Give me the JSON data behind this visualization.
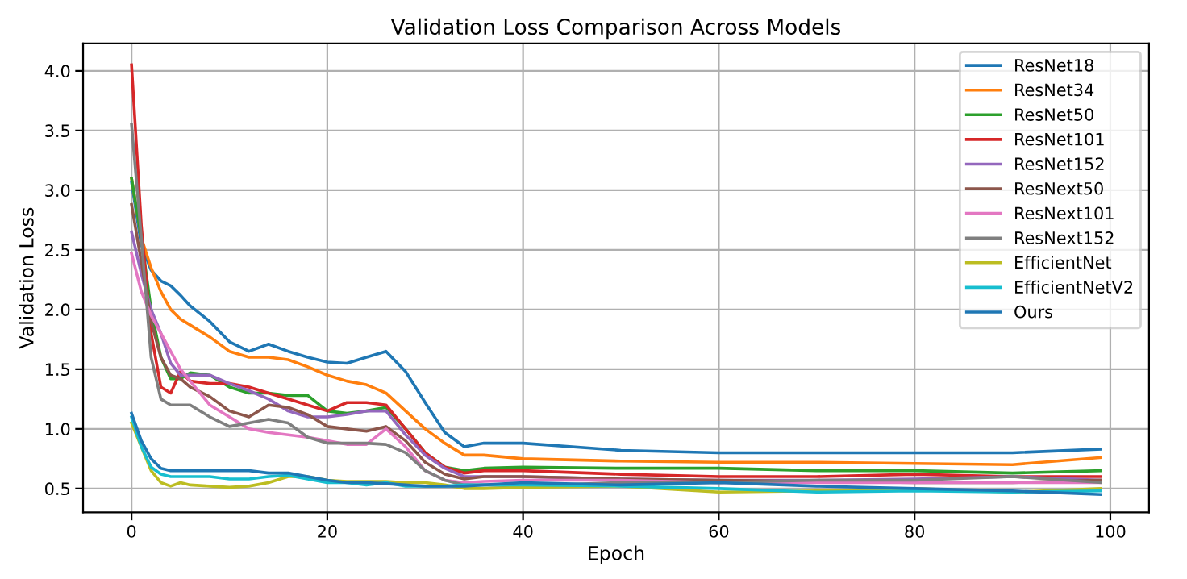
{
  "chart_data": {
    "type": "line",
    "title": "Validation Loss Comparison Across Models",
    "xlabel": "Epoch",
    "ylabel": "Validation Loss",
    "x": [
      0,
      1,
      2,
      3,
      4,
      5,
      6,
      8,
      10,
      12,
      14,
      16,
      18,
      20,
      22,
      24,
      26,
      28,
      30,
      32,
      34,
      36,
      40,
      50,
      60,
      70,
      80,
      90,
      99
    ],
    "series": [
      {
        "name": "ResNet18",
        "color": "#1f77b4",
        "values": [
          3.07,
          2.54,
          2.33,
          2.24,
          2.2,
          2.12,
          2.03,
          1.9,
          1.73,
          1.65,
          1.71,
          1.65,
          1.6,
          1.56,
          1.55,
          1.6,
          1.65,
          1.48,
          1.22,
          0.97,
          0.85,
          0.88,
          0.88,
          0.82,
          0.8,
          0.8,
          0.8,
          0.8,
          0.83
        ]
      },
      {
        "name": "ResNet34",
        "color": "#ff7f0e",
        "values": [
          3.1,
          2.6,
          2.35,
          2.15,
          2.0,
          1.92,
          1.87,
          1.77,
          1.65,
          1.6,
          1.6,
          1.58,
          1.52,
          1.45,
          1.4,
          1.37,
          1.3,
          1.15,
          1.0,
          0.88,
          0.78,
          0.78,
          0.75,
          0.73,
          0.72,
          0.72,
          0.71,
          0.7,
          0.76
        ]
      },
      {
        "name": "ResNet50",
        "color": "#2ca02c",
        "values": [
          3.1,
          2.6,
          2.0,
          1.6,
          1.42,
          1.42,
          1.47,
          1.45,
          1.35,
          1.3,
          1.3,
          1.28,
          1.28,
          1.15,
          1.13,
          1.15,
          1.18,
          1.0,
          0.8,
          0.68,
          0.65,
          0.67,
          0.68,
          0.67,
          0.67,
          0.65,
          0.65,
          0.63,
          0.65
        ]
      },
      {
        "name": "ResNet101",
        "color": "#d62728",
        "values": [
          4.05,
          2.7,
          1.8,
          1.35,
          1.3,
          1.48,
          1.4,
          1.38,
          1.38,
          1.35,
          1.3,
          1.25,
          1.2,
          1.15,
          1.22,
          1.22,
          1.2,
          1.0,
          0.8,
          0.68,
          0.63,
          0.65,
          0.65,
          0.62,
          0.6,
          0.6,
          0.62,
          0.6,
          0.6
        ]
      },
      {
        "name": "ResNet152",
        "color": "#9467bd",
        "values": [
          2.65,
          2.3,
          2.0,
          1.8,
          1.55,
          1.45,
          1.45,
          1.45,
          1.38,
          1.32,
          1.25,
          1.15,
          1.1,
          1.1,
          1.12,
          1.15,
          1.15,
          0.95,
          0.78,
          0.67,
          0.6,
          0.6,
          0.6,
          0.58,
          0.57,
          0.57,
          0.58,
          0.6,
          0.57
        ]
      },
      {
        "name": "ResNext50",
        "color": "#8c564b",
        "values": [
          2.88,
          2.4,
          1.9,
          1.6,
          1.45,
          1.42,
          1.35,
          1.27,
          1.15,
          1.1,
          1.2,
          1.18,
          1.12,
          1.02,
          1.0,
          0.98,
          1.02,
          0.9,
          0.72,
          0.62,
          0.58,
          0.6,
          0.6,
          0.58,
          0.57,
          0.56,
          0.55,
          0.55,
          0.57
        ]
      },
      {
        "name": "ResNext101",
        "color": "#e377c2",
        "values": [
          2.47,
          2.15,
          1.95,
          1.8,
          1.65,
          1.5,
          1.4,
          1.2,
          1.1,
          1.0,
          0.97,
          0.95,
          0.93,
          0.9,
          0.87,
          0.87,
          1.0,
          0.85,
          0.65,
          0.57,
          0.55,
          0.56,
          0.57,
          0.57,
          0.55,
          0.55,
          0.55,
          0.55,
          0.55
        ]
      },
      {
        "name": "ResNext152",
        "color": "#7f7f7f",
        "values": [
          3.55,
          2.6,
          1.6,
          1.25,
          1.2,
          1.2,
          1.2,
          1.1,
          1.02,
          1.05,
          1.08,
          1.05,
          0.93,
          0.88,
          0.88,
          0.88,
          0.87,
          0.8,
          0.65,
          0.57,
          0.53,
          0.53,
          0.52,
          0.55,
          0.55,
          0.57,
          0.57,
          0.6,
          0.55
        ]
      },
      {
        "name": "EfficientNet",
        "color": "#bcbd22",
        "values": [
          1.05,
          0.85,
          0.65,
          0.55,
          0.52,
          0.55,
          0.53,
          0.52,
          0.51,
          0.52,
          0.55,
          0.6,
          0.6,
          0.57,
          0.56,
          0.56,
          0.56,
          0.55,
          0.55,
          0.53,
          0.5,
          0.5,
          0.51,
          0.52,
          0.47,
          0.48,
          0.5,
          0.47,
          0.5
        ]
      },
      {
        "name": "EfficientNetV2",
        "color": "#17becf",
        "values": [
          1.1,
          0.85,
          0.68,
          0.62,
          0.6,
          0.6,
          0.6,
          0.6,
          0.58,
          0.58,
          0.6,
          0.61,
          0.58,
          0.55,
          0.55,
          0.53,
          0.55,
          0.52,
          0.52,
          0.52,
          0.53,
          0.53,
          0.53,
          0.52,
          0.5,
          0.47,
          0.48,
          0.47,
          0.48
        ]
      },
      {
        "name": "Ours",
        "color": "#1f77b4",
        "values": [
          1.13,
          0.9,
          0.75,
          0.67,
          0.65,
          0.65,
          0.65,
          0.65,
          0.65,
          0.65,
          0.63,
          0.63,
          0.6,
          0.57,
          0.55,
          0.55,
          0.54,
          0.53,
          0.52,
          0.52,
          0.52,
          0.53,
          0.55,
          0.53,
          0.55,
          0.52,
          0.5,
          0.48,
          0.45
        ]
      }
    ],
    "xlim": [
      -4.95,
      103.95
    ],
    "ylim": [
      0.3,
      4.23
    ],
    "xticks": [
      0,
      20,
      40,
      60,
      80,
      100
    ],
    "yticks": [
      {
        "value": 0.5,
        "label": "0.5"
      },
      {
        "value": 1.0,
        "label": "1.0"
      },
      {
        "value": 1.5,
        "label": "1.5"
      },
      {
        "value": 2.0,
        "label": "2.0"
      },
      {
        "value": 2.5,
        "label": "2.5"
      },
      {
        "value": 3.0,
        "label": "3.0"
      },
      {
        "value": 3.5,
        "label": "3.5"
      },
      {
        "value": 4.0,
        "label": "4.0"
      }
    ],
    "grid": true,
    "legend": "top right"
  }
}
